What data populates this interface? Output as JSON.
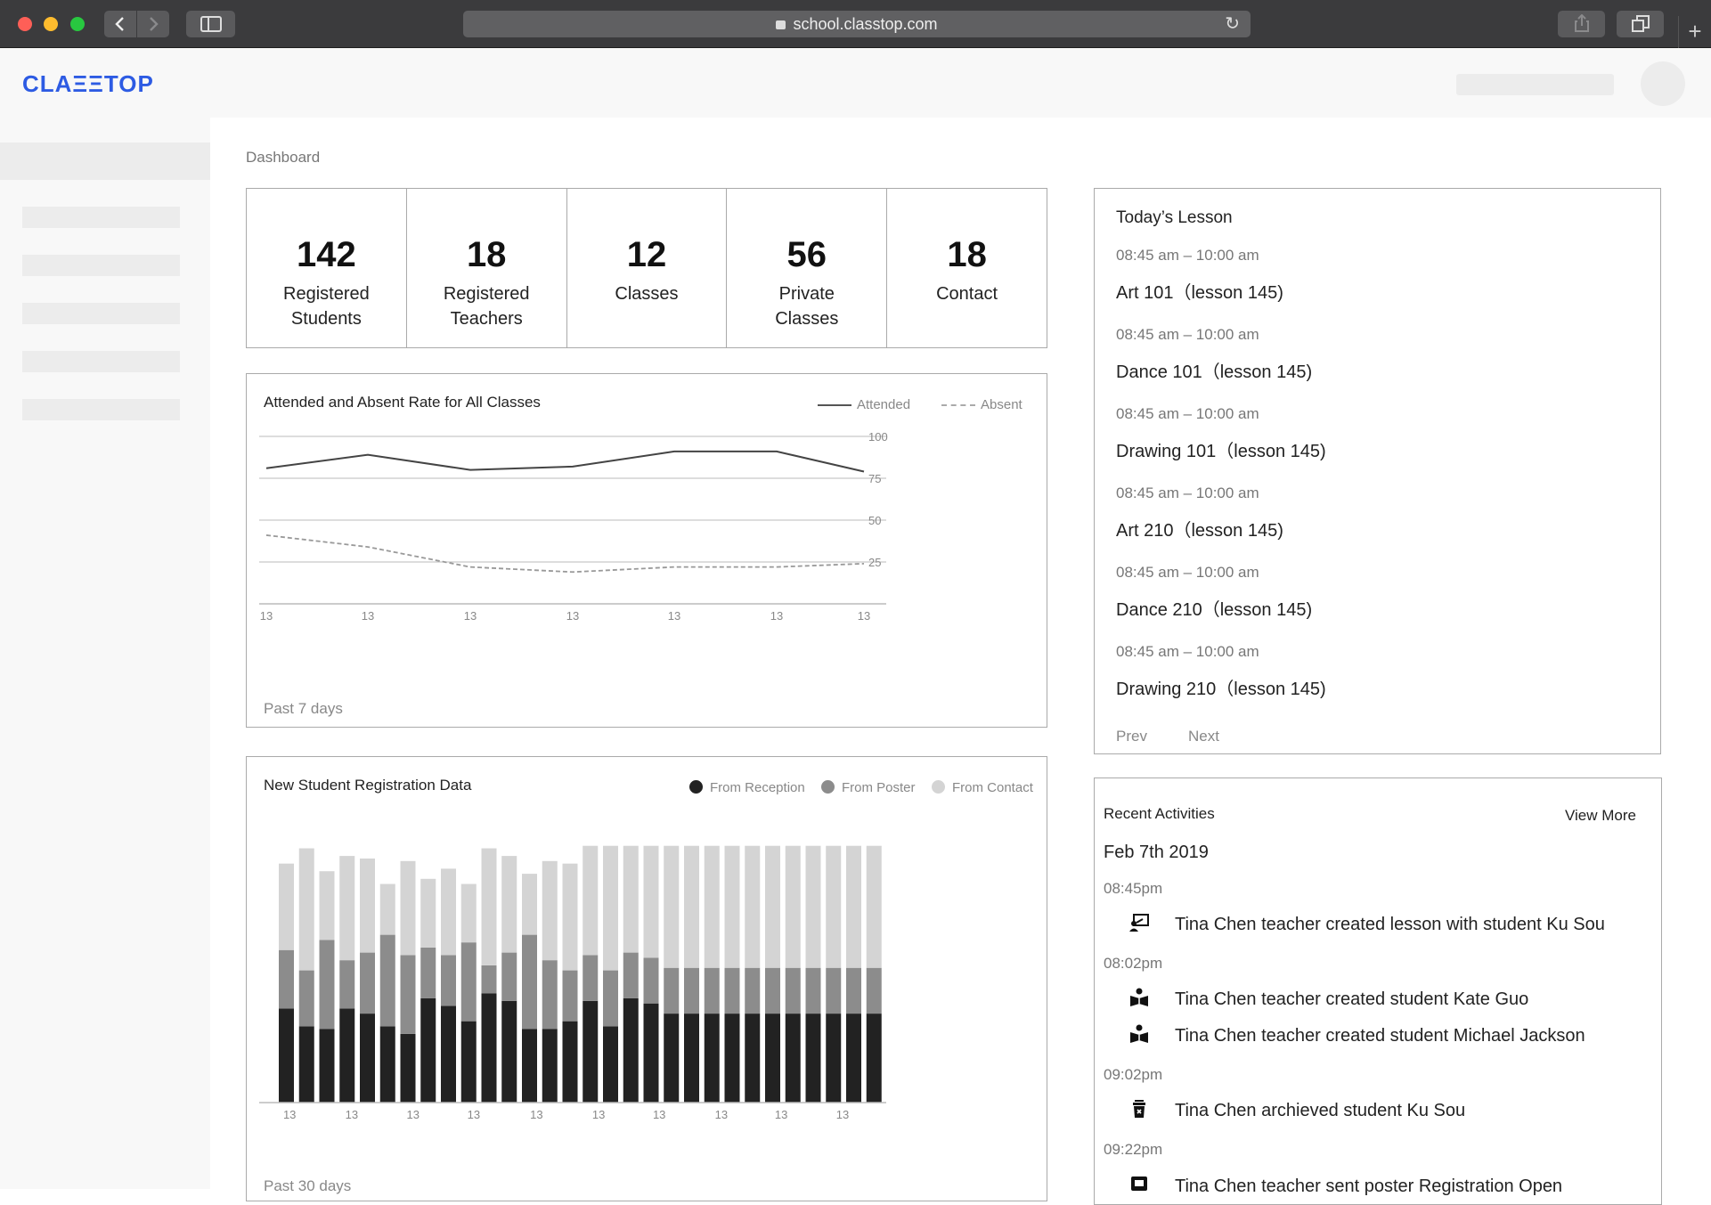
{
  "browser": {
    "url": "school.classtop.com"
  },
  "app": {
    "logo": "CLAΞΞTOP"
  },
  "breadcrumb": "Dashboard",
  "stats": [
    {
      "value": "142",
      "label": "Registered Students"
    },
    {
      "value": "18",
      "label": "Registered Teachers"
    },
    {
      "value": "12",
      "label": "Classes"
    },
    {
      "value": "56",
      "label": "Private Classes"
    },
    {
      "value": "18",
      "label": "Contact"
    }
  ],
  "attendance": {
    "title": "Attended and Absent Rate for All Classes",
    "legend_attended": "Attended",
    "legend_absent": "Absent",
    "footer": "Past 7 days"
  },
  "registration": {
    "title": "New Student Registration Data",
    "legend_reception": "From Reception",
    "legend_poster": "From Poster",
    "legend_contact": "From Contact",
    "footer": "Past 30 days"
  },
  "lessons": {
    "title": "Today’s Lesson",
    "items": [
      {
        "time": "08:45 am – 10:00 am",
        "name": "Art 101（lesson 145)"
      },
      {
        "time": "08:45 am – 10:00 am",
        "name": "Dance 101（lesson 145)"
      },
      {
        "time": "08:45 am – 10:00 am",
        "name": "Drawing 101（lesson 145)"
      },
      {
        "time": "08:45 am – 10:00 am",
        "name": "Art 210（lesson 145)"
      },
      {
        "time": "08:45 am – 10:00 am",
        "name": "Dance 210（lesson 145)"
      },
      {
        "time": "08:45 am – 10:00 am",
        "name": "Drawing 210（lesson 145)"
      }
    ],
    "prev": "Prev",
    "next": "Next"
  },
  "activities": {
    "title": "Recent Activities",
    "view_more": "View More",
    "date": "Feb 7th 2019",
    "groups": [
      {
        "time": "08:45pm",
        "rows": [
          {
            "icon": "lesson-board-icon",
            "text": "Tina Chen teacher created lesson with student Ku Sou"
          }
        ]
      },
      {
        "time": "08:02pm",
        "rows": [
          {
            "icon": "student-book-icon",
            "text": "Tina Chen teacher created student Kate Guo"
          },
          {
            "icon": "student-book-icon",
            "text": "Tina Chen teacher created student Michael Jackson"
          }
        ]
      },
      {
        "time": "09:02pm",
        "rows": [
          {
            "icon": "archive-trash-icon",
            "text": "Tina Chen archieved student Ku Sou"
          }
        ]
      },
      {
        "time": "09:22pm",
        "rows": [
          {
            "icon": "poster-icon",
            "text": "Tina Chen teacher sent poster Registration Open"
          }
        ]
      }
    ]
  },
  "colors": {
    "brand": "#2d5be3",
    "attended_line": "#444444",
    "absent_line": "#999999",
    "reception": "#222222",
    "poster": "#8c8c8c",
    "contact": "#d4d4d4"
  },
  "chart_data": [
    {
      "type": "line",
      "title": "Attended and Absent Rate for All Classes",
      "x": [
        "13",
        "13",
        "13",
        "13",
        "13",
        "13",
        "13"
      ],
      "series": [
        {
          "name": "Attended",
          "values": [
            81,
            89,
            80,
            82,
            91,
            91,
            79
          ]
        },
        {
          "name": "Absent",
          "values": [
            41,
            34,
            22,
            19,
            22,
            22,
            24
          ]
        }
      ],
      "ylim": [
        0,
        100
      ],
      "yticks": [
        100,
        75,
        50,
        25
      ],
      "grid": true,
      "legend": "top-right"
    },
    {
      "type": "bar",
      "stacked": true,
      "title": "New Student Registration Data",
      "x_labels": [
        "13",
        "13",
        "13",
        "13",
        "13",
        "13",
        "13",
        "13",
        "13",
        "13"
      ],
      "series": [
        {
          "name": "From Reception",
          "values": [
            37,
            30,
            29,
            37,
            35,
            30,
            27,
            41,
            38,
            32,
            43,
            40,
            29,
            29,
            32,
            40,
            30,
            41,
            39,
            35,
            35,
            35,
            35,
            35,
            35,
            35,
            35,
            35,
            35,
            35
          ]
        },
        {
          "name": "From Poster",
          "values": [
            23,
            22,
            35,
            19,
            24,
            36,
            31,
            20,
            20,
            31,
            11,
            19,
            37,
            27,
            20,
            18,
            22,
            18,
            18,
            18,
            18,
            18,
            18,
            18,
            18,
            18,
            18,
            18,
            18,
            18
          ]
        },
        {
          "name": "From Contact",
          "values": [
            34,
            48,
            27,
            41,
            37,
            20,
            37,
            27,
            34,
            23,
            46,
            38,
            24,
            39,
            42,
            43,
            49,
            42,
            44,
            48,
            48,
            48,
            48,
            48,
            48,
            48,
            48,
            48,
            48,
            48
          ]
        }
      ],
      "ylim": [
        0,
        110
      ],
      "legend": "top-right"
    }
  ]
}
